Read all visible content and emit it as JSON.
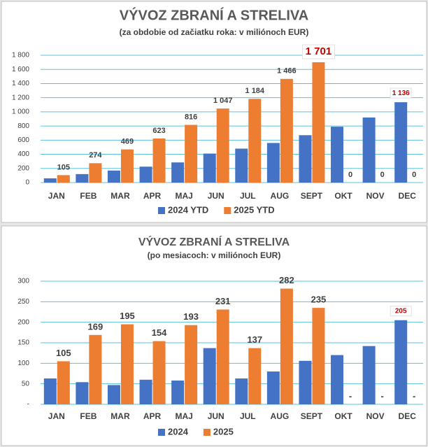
{
  "chart_data": [
    {
      "type": "bar",
      "title": "VÝVOZ ZBRANÍ A STRELIVA",
      "subtitle": "(za obdobie od začiatku roka: v miliónoch EUR)",
      "categories": [
        "JAN",
        "FEB",
        "MAR",
        "APR",
        "MAJ",
        "JUN",
        "JUL",
        "AUG",
        "SEPT",
        "OKT",
        "NOV",
        "DEC"
      ],
      "series": [
        {
          "name": "2024 YTD",
          "color": "#4472c4",
          "values": [
            60,
            120,
            170,
            225,
            285,
            410,
            480,
            560,
            670,
            790,
            920,
            1136
          ],
          "value_labels": [
            null,
            null,
            null,
            null,
            null,
            null,
            null,
            null,
            null,
            null,
            null,
            "1 136"
          ]
        },
        {
          "name": "2025 YTD",
          "color": "#ed7d31",
          "values": [
            105,
            274,
            469,
            623,
            816,
            1047,
            1184,
            1466,
            1701,
            0,
            0,
            0
          ],
          "value_labels": [
            "105",
            "274",
            "469",
            "623",
            "816",
            "1 047",
            "1 184",
            "1 466",
            "1 701",
            "0",
            "0",
            "0"
          ]
        }
      ],
      "ylim": [
        0,
        1800
      ],
      "yticks": [
        0,
        200,
        400,
        600,
        800,
        {
          "value": 1000,
          "label": "1 000"
        },
        {
          "value": 1200,
          "label": "1 200"
        },
        {
          "value": 1400,
          "label": "1 400"
        },
        {
          "value": 1600,
          "label": "1 600"
        },
        {
          "value": 1800,
          "label": "1 800"
        }
      ],
      "grid": true,
      "legend": "bottom"
    },
    {
      "type": "bar",
      "title": "VÝVOZ ZBRANÍ A STRELIVA",
      "subtitle": "(po mesiacoch: v miliónoch EUR)",
      "categories": [
        "JAN",
        "FEB",
        "MAR",
        "APR",
        "MAJ",
        "JUN",
        "JUL",
        "AUG",
        "SEPT",
        "OKT",
        "NOV",
        "DEC"
      ],
      "series": [
        {
          "name": "2024",
          "color": "#4472c4",
          "values": [
            63,
            54,
            47,
            60,
            58,
            137,
            63,
            80,
            106,
            120,
            142,
            205
          ],
          "value_labels": [
            null,
            null,
            null,
            null,
            null,
            null,
            null,
            null,
            null,
            null,
            null,
            "205"
          ]
        },
        {
          "name": "2025",
          "color": "#ed7d31",
          "values": [
            105,
            169,
            195,
            154,
            193,
            231,
            137,
            282,
            235,
            null,
            null,
            null
          ],
          "value_labels": [
            "105",
            "169",
            "195",
            "154",
            "193",
            "231",
            "137",
            "282",
            "235",
            "-",
            "-",
            "-"
          ]
        }
      ],
      "ylim": [
        0,
        300
      ],
      "yticks": [
        {
          "value": 0,
          "label": "-"
        },
        50,
        100,
        150,
        200,
        250,
        300
      ],
      "grid": true,
      "legend": "bottom"
    }
  ]
}
